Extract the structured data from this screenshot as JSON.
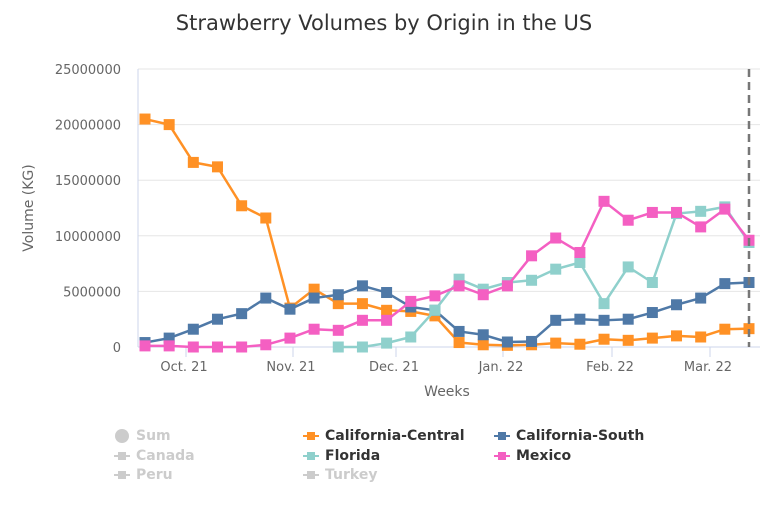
{
  "chart_data": {
    "type": "line",
    "title": "Strawberry Volumes by Origin in the US",
    "xlabel": "Weeks",
    "ylabel": "Volume (KG)",
    "ylim": [
      0,
      25000000
    ],
    "yticks": [
      "0",
      "5000000",
      "10000000",
      "15000000",
      "20000000",
      "25000000"
    ],
    "xtick_labels": [
      "Oct. 21",
      "Nov. 21",
      "Dec. 21",
      "Jan. 22",
      "Feb. 22",
      "Mar. 22"
    ],
    "grid": true,
    "legend_position": "bottom",
    "x": [
      "2021-09-20",
      "2021-09-27",
      "2021-10-04",
      "2021-10-11",
      "2021-10-18",
      "2021-10-25",
      "2021-11-01",
      "2021-11-08",
      "2021-11-15",
      "2021-11-22",
      "2021-11-29",
      "2021-12-06",
      "2021-12-13",
      "2021-12-20",
      "2021-12-27",
      "2022-01-03",
      "2022-01-10",
      "2022-01-17",
      "2022-01-24",
      "2022-01-31",
      "2022-02-07",
      "2022-02-14",
      "2022-02-21",
      "2022-02-28",
      "2022-03-07",
      "2022-03-14"
    ],
    "series": [
      {
        "name": "California-Central",
        "color": "#ff9125",
        "visible": true,
        "values": [
          20500000,
          20000000,
          16600000,
          16200000,
          12700000,
          11600000,
          3500000,
          5200000,
          3900000,
          3900000,
          3300000,
          3200000,
          2800000,
          400000,
          200000,
          150000,
          200000,
          350000,
          250000,
          700000,
          600000,
          800000,
          1000000,
          900000,
          1600000,
          1650000
        ]
      },
      {
        "name": "California-South",
        "color": "#4f79a7",
        "visible": true,
        "values": [
          400000,
          800000,
          1600000,
          2500000,
          3000000,
          4400000,
          3400000,
          4400000,
          4700000,
          5500000,
          4900000,
          3600000,
          3300000,
          1400000,
          1100000,
          450000,
          500000,
          2400000,
          2500000,
          2400000,
          2500000,
          3100000,
          3800000,
          4400000,
          5700000,
          5800000
        ]
      },
      {
        "name": "Florida",
        "color": "#8fd0cc",
        "visible": true,
        "values": [
          null,
          null,
          null,
          null,
          null,
          null,
          null,
          null,
          0,
          0,
          350000,
          900000,
          3300000,
          6100000,
          5200000,
          5800000,
          6000000,
          7000000,
          7600000,
          3900000,
          7200000,
          5800000,
          12000000,
          12200000,
          12600000,
          9400000
        ]
      },
      {
        "name": "Mexico",
        "color": "#f45fc2",
        "visible": true,
        "values": [
          100000,
          100000,
          0,
          0,
          0,
          200000,
          800000,
          1600000,
          1500000,
          2400000,
          2400000,
          4100000,
          4600000,
          5500000,
          4700000,
          5500000,
          8200000,
          9800000,
          8500000,
          13100000,
          11400000,
          12100000,
          12100000,
          10800000,
          12400000,
          9600000
        ]
      }
    ],
    "hidden_series": [
      "Sum",
      "Canada",
      "Peru",
      "Turkey"
    ]
  },
  "legend": [
    {
      "label": "Sum",
      "color": "#cccccc",
      "symbol": "circle",
      "active": false
    },
    {
      "label": "Canada",
      "color": "#cccccc",
      "symbol": "square",
      "active": false
    },
    {
      "label": "Peru",
      "color": "#cccccc",
      "symbol": "square",
      "active": false
    },
    {
      "label": "California-Central",
      "color": "#ff9125",
      "symbol": "square",
      "active": true
    },
    {
      "label": "Florida",
      "color": "#8fd0cc",
      "symbol": "square",
      "active": true
    },
    {
      "label": "Turkey",
      "color": "#cccccc",
      "symbol": "square",
      "active": false
    },
    {
      "label": "California-South",
      "color": "#4f79a7",
      "symbol": "square",
      "active": true
    },
    {
      "label": "Mexico",
      "color": "#f45fc2",
      "symbol": "square",
      "active": true
    }
  ]
}
